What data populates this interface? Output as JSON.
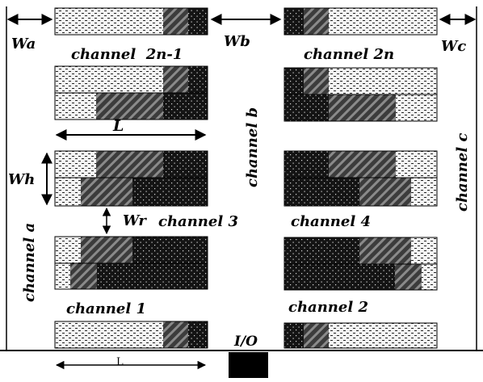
{
  "labels": {
    "wa": "Wa",
    "wb": "Wb",
    "wc": "Wc",
    "wh": "Wh",
    "wr": "Wr",
    "l_top": "L",
    "l_bottom": "L",
    "io": "I/O",
    "channel_2n_1": "channel  2n-1",
    "channel_2n": "channel 2n",
    "channel_b": "channel b",
    "channel_c": "channel c",
    "channel_a": "channel a",
    "channel_3": "channel 3",
    "channel_4": "channel 4",
    "channel_1": "channel 1",
    "channel_2": "channel 2"
  },
  "patterns": [
    "light-dash",
    "diagonal-stripe",
    "dark-dot"
  ],
  "colors": {
    "ink": "#000000",
    "background": "#ffffff",
    "dark_fill": "#141414",
    "stripe_fill": "#3c3c3c",
    "light_fill": "#f4f4f4"
  }
}
